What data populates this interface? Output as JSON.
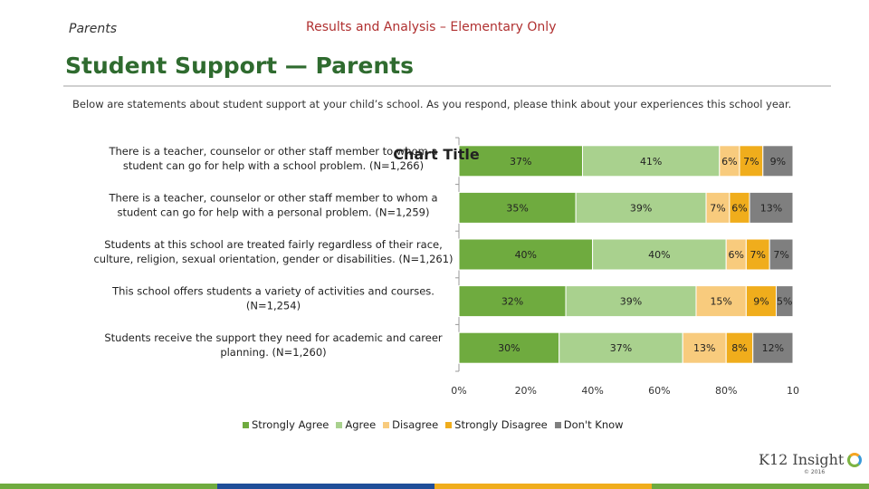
{
  "header": {
    "left": "Parents",
    "center": "Results and Analysis – Elementary Only"
  },
  "title": "Student Support — Parents",
  "subtitle": "Below are statements about student support at your child’s school. As you respond, please think about your experiences this school year.",
  "logo": {
    "text": "K12 Insight",
    "copyright": "© 2016"
  },
  "colors": {
    "strongly_agree": "#6fab3f",
    "agree": "#a9d18e",
    "disagree": "#f8cb7d",
    "strongly_disagree": "#f0ad1c",
    "dont_know": "#7f7f7f",
    "footer": [
      "#6fab3f",
      "#1f4e99",
      "#f0ad1c",
      "#6fab3f"
    ]
  },
  "chart_data": {
    "type": "bar",
    "orientation": "horizontal",
    "stacked": true,
    "title": "Chart Title",
    "categories": [
      [
        "There is a teacher, counselor or other staff member to whom a",
        "student can go for help with a school problem. (N=1,266)"
      ],
      [
        "There is a teacher, counselor or other staff member to whom a",
        "student can go for help with a personal problem. (N=1,259)"
      ],
      [
        "Students at this school are treated fairly regardless of their race,",
        "culture, religion, sexual orientation, gender or disabilities. (N=1,261)"
      ],
      [
        "This school offers students a variety of activities and courses.",
        "(N=1,254)"
      ],
      [
        "Students receive the support they need for academic and career",
        "planning. (N=1,260)"
      ]
    ],
    "series": [
      {
        "name": "Strongly Agree",
        "values": [
          37,
          35,
          40,
          32,
          30
        ]
      },
      {
        "name": "Agree",
        "values": [
          41,
          39,
          40,
          39,
          37
        ]
      },
      {
        "name": "Disagree",
        "values": [
          6,
          7,
          6,
          15,
          13
        ]
      },
      {
        "name": "Strongly Disagree",
        "values": [
          7,
          6,
          7,
          9,
          8
        ]
      },
      {
        "name": "Don't Know",
        "values": [
          9,
          13,
          7,
          5,
          12
        ]
      }
    ],
    "xticks": [
      "0%",
      "20%",
      "40%",
      "60%",
      "80%",
      "10"
    ],
    "xlim": [
      0,
      100
    ],
    "legend_position": "bottom"
  }
}
